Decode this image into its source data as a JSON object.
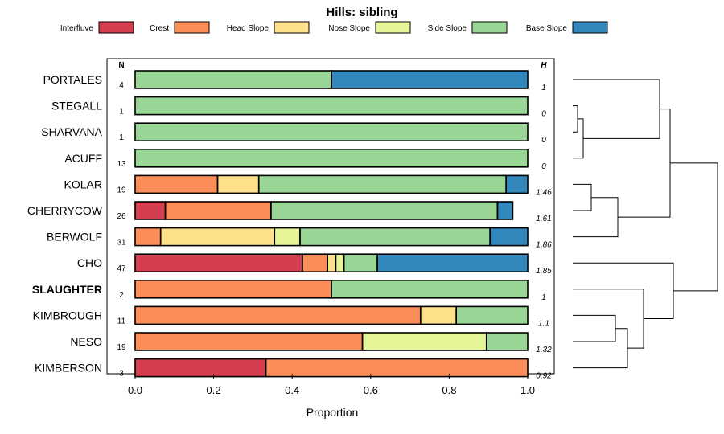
{
  "chart_data": {
    "type": "bar",
    "orientation": "horizontal",
    "stacked": true,
    "title": "Hills: sibling",
    "xlabel": "Proportion",
    "ylabel": "",
    "xlim": [
      0,
      1
    ],
    "xticks": [
      "0.0",
      "0.2",
      "0.4",
      "0.6",
      "0.8",
      "1.0"
    ],
    "n_header": "N",
    "h_header": "H",
    "legend": [
      {
        "name": "Interfluve",
        "color": "#d53e4f"
      },
      {
        "name": "Crest",
        "color": "#fc8d59"
      },
      {
        "name": "Head Slope",
        "color": "#fee08b"
      },
      {
        "name": "Nose Slope",
        "color": "#e6f598"
      },
      {
        "name": "Side Slope",
        "color": "#99d594"
      },
      {
        "name": "Base Slope",
        "color": "#3288bd"
      }
    ],
    "rows": [
      {
        "name": "PORTALES",
        "n": "4",
        "h": "1",
        "bold": false,
        "values": [
          0,
          0,
          0,
          0,
          0.5,
          0.5
        ]
      },
      {
        "name": "STEGALL",
        "n": "1",
        "h": "0",
        "bold": false,
        "values": [
          0,
          0,
          0,
          0,
          1.0,
          0
        ]
      },
      {
        "name": "SHARVANA",
        "n": "1",
        "h": "0",
        "bold": false,
        "values": [
          0,
          0,
          0,
          0,
          1.0,
          0
        ]
      },
      {
        "name": "ACUFF",
        "n": "13",
        "h": "0",
        "bold": false,
        "values": [
          0,
          0,
          0,
          0,
          1.0,
          0
        ]
      },
      {
        "name": "KOLAR",
        "n": "19",
        "h": "1.46",
        "bold": false,
        "values": [
          0,
          0.21,
          0.105,
          0,
          0.63,
          0.055
        ]
      },
      {
        "name": "CHERRYCOW",
        "n": "26",
        "h": "1.61",
        "bold": false,
        "values": [
          0.077,
          0.269,
          0,
          0,
          0.577,
          0.039
        ]
      },
      {
        "name": "BERWOLF",
        "n": "31",
        "h": "1.86",
        "bold": false,
        "values": [
          0,
          0.065,
          0.29,
          0.065,
          0.484,
          0.096
        ]
      },
      {
        "name": "CHO",
        "n": "47",
        "h": "1.85",
        "bold": false,
        "values": [
          0.426,
          0.064,
          0.021,
          0.021,
          0.085,
          0.383
        ]
      },
      {
        "name": "SLAUGHTER",
        "n": "2",
        "h": "1",
        "bold": true,
        "values": [
          0,
          0.5,
          0,
          0,
          0.5,
          0
        ]
      },
      {
        "name": "KIMBROUGH",
        "n": "11",
        "h": "1.1",
        "bold": false,
        "values": [
          0,
          0.727,
          0.091,
          0,
          0.182,
          0
        ]
      },
      {
        "name": "NESO",
        "n": "19",
        "h": "1.32",
        "bold": false,
        "values": [
          0,
          0.579,
          0,
          0.316,
          0.105,
          0
        ]
      },
      {
        "name": "KIMBERSON",
        "n": "3",
        "h": "0.92",
        "bold": false,
        "values": [
          0.333,
          0.667,
          0,
          0,
          0,
          0
        ]
      }
    ]
  }
}
